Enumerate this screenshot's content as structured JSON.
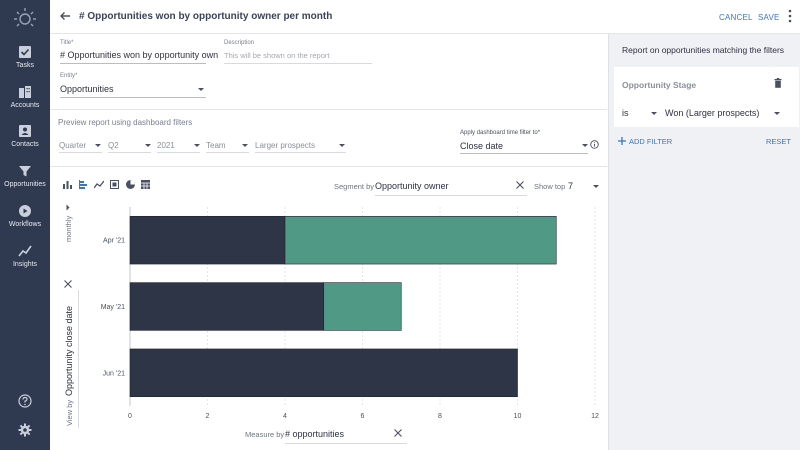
{
  "sidebar": {
    "items": [
      {
        "label": "Tasks",
        "icon": "tasks-icon"
      },
      {
        "label": "Accounts",
        "icon": "accounts-icon"
      },
      {
        "label": "Contacts",
        "icon": "contacts-icon"
      },
      {
        "label": "Opportunities",
        "icon": "opportunities-icon"
      },
      {
        "label": "Workflows",
        "icon": "workflows-icon"
      },
      {
        "label": "Insights",
        "icon": "insights-icon"
      }
    ]
  },
  "header": {
    "title": "# Opportunities won by opportunity owner per month",
    "cancel_label": "CANCEL",
    "save_label": "SAVE"
  },
  "form": {
    "title_label": "Title",
    "title_value": "# Opportunities won by opportunity own",
    "description_label": "Description",
    "description_placeholder": "This will be shown on the report",
    "entity_label": "Entity",
    "entity_value": "Opportunities"
  },
  "preview": {
    "label": "Preview report using dashboard filters",
    "period_type": "Quarter",
    "period": "Q2",
    "year": "2021",
    "team": "Team",
    "segment": "Larger prospects",
    "time_filter_label": "Apply dashboard time filter to",
    "time_filter_value": "Close date"
  },
  "right_panel": {
    "title": "Report on opportunities matching the filters",
    "filter_title": "Opportunity Stage",
    "operator": "is",
    "value": "Won (Larger prospects)",
    "add_filter": "ADD FILTER",
    "reset": "RESET"
  },
  "toolbar": {
    "segment_by_label": "Segment by",
    "segment_by_value": "Opportunity owner",
    "show_top_label": "Show top",
    "show_top_value": "7",
    "granularity": "monthly",
    "view_by_label": "View by",
    "view_by_value": "Opportunity close date",
    "measure_by_label": "Measure by",
    "measure_by_value": "# opportunities"
  },
  "colors": {
    "series1": "#2e3547",
    "series2": "#4f9985",
    "accent": "#3a74c8",
    "sidebar": "#2f3a51"
  },
  "chart_data": {
    "type": "bar",
    "orientation": "horizontal",
    "stacked": true,
    "categories": [
      "Apr '21",
      "May '21",
      "Jun '21"
    ],
    "series": [
      {
        "values": [
          4,
          5,
          10
        ]
      },
      {
        "values": [
          7,
          2,
          0
        ]
      }
    ],
    "xlim": [
      0,
      12
    ],
    "xticks": [
      0,
      2,
      4,
      6,
      8,
      10,
      12
    ],
    "grid": true
  }
}
